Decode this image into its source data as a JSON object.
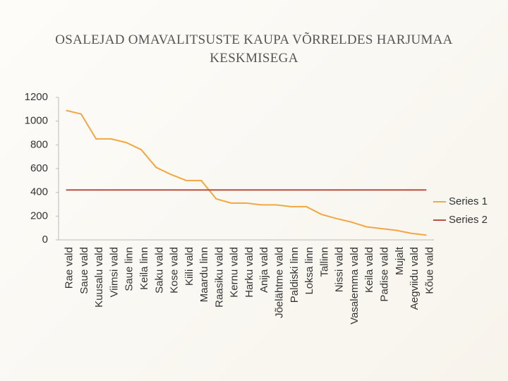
{
  "chart_data": {
    "type": "line",
    "title": "OSALEJAD OMAVALITSUSTE KAUPA VÕRRELDES HARJUMAA KESKMISEGA",
    "categories": [
      "Rae vald",
      "Saue vald",
      "Kuusalu vald",
      "Viimsi vald",
      "Saue linn",
      "Keila linn",
      "Saku vald",
      "Kose vald",
      "Kiili vald",
      "Maardu linn",
      "Raasiku vald",
      "Kernu vald",
      "Harku vald",
      "Anija vald",
      "Jõelähtme vald",
      "Paldiski linn",
      "Loksa linn",
      "Tallinn",
      "Nissi vald",
      "Vasalemma vald",
      "Keila vald",
      "Padise vald",
      "Mujalt",
      "Aegviidu vald",
      "Kõue vald"
    ],
    "series": [
      {
        "name": "Series 1",
        "color": "#f4a640",
        "values": [
          1090,
          1060,
          850,
          850,
          820,
          760,
          610,
          550,
          500,
          500,
          345,
          310,
          310,
          295,
          295,
          280,
          280,
          215,
          180,
          150,
          110,
          95,
          80,
          55,
          40
        ]
      },
      {
        "name": "Series 2",
        "color": "#b5523b",
        "values": [
          420,
          420,
          420,
          420,
          420,
          420,
          420,
          420,
          420,
          420,
          420,
          420,
          420,
          420,
          420,
          420,
          420,
          420,
          420,
          420,
          420,
          420,
          420,
          420,
          420
        ]
      }
    ],
    "ylim": [
      0,
      1200
    ],
    "yticks": [
      0,
      200,
      400,
      600,
      800,
      1000,
      1200
    ],
    "legend": "right"
  }
}
